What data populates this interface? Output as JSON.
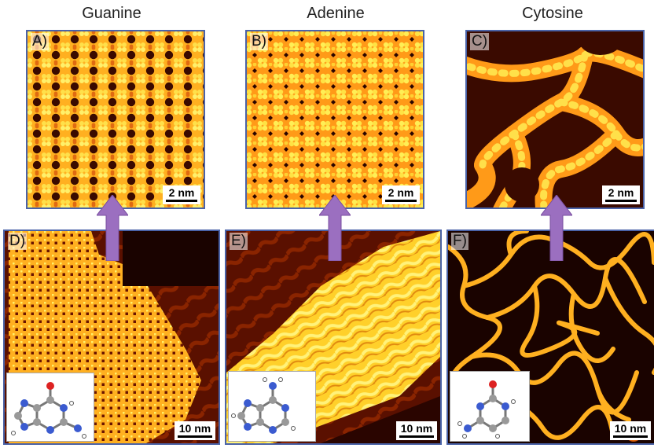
{
  "columns": [
    {
      "title": "Guanine"
    },
    {
      "title": "Adenine"
    },
    {
      "title": "Cytosine"
    }
  ],
  "panels": {
    "A": {
      "label": "A)",
      "scale": "2 nm"
    },
    "B": {
      "label": "B)",
      "scale": "2 nm"
    },
    "C": {
      "label": "C)",
      "scale": "2 nm"
    },
    "D": {
      "label": "D)",
      "scale": "10 nm"
    },
    "E": {
      "label": "E)",
      "scale": "10 nm"
    },
    "F": {
      "label": "F)",
      "scale": "10 nm"
    }
  },
  "colors": {
    "frame": "#4a63a8",
    "arrow": "#9b6fc0",
    "stm_dark": "#2a0800",
    "stm_mid": "#c44400",
    "stm_bright": "#ffd23a"
  }
}
